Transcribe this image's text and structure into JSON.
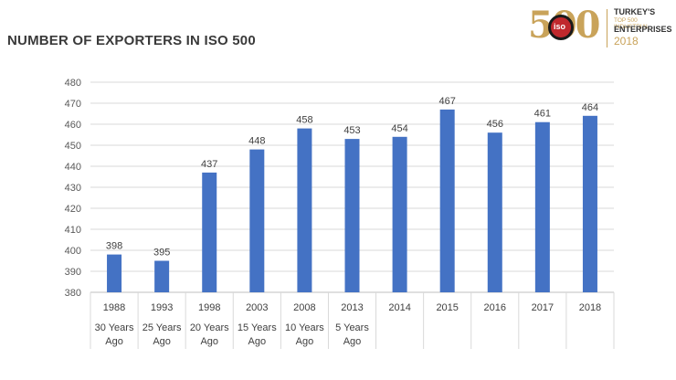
{
  "title": "NUMBER OF EXPORTERS IN ISO 500",
  "logo": {
    "big": "500",
    "badge": "iso",
    "line1": "TURKEY'S",
    "line2": "TOP 500 INDUSTRIAL",
    "line3": "ENTERPRISES",
    "line4": "2018"
  },
  "chart_data": {
    "type": "bar",
    "categories": [
      "1988",
      "1993",
      "1998",
      "2003",
      "2008",
      "2013",
      "2014",
      "2015",
      "2016",
      "2017",
      "2018"
    ],
    "sublabels": [
      "30 Years Ago",
      "25 Years Ago",
      "20 Years Ago",
      "15 Years Ago",
      "10 Years Ago",
      "5 Years Ago",
      "",
      "",
      "",
      "",
      ""
    ],
    "values": [
      398,
      395,
      437,
      448,
      458,
      453,
      454,
      467,
      456,
      461,
      464
    ],
    "data_labels": [
      "398",
      "395",
      "437",
      "448",
      "458",
      "453",
      "454",
      "467",
      "456",
      "461",
      "464"
    ],
    "ylim": [
      380,
      480
    ],
    "yticks": [
      "380",
      "390",
      "400",
      "410",
      "420",
      "430",
      "440",
      "450",
      "460",
      "470",
      "480"
    ],
    "bar_color": "#4472c4",
    "grid": true,
    "legend": "none"
  }
}
